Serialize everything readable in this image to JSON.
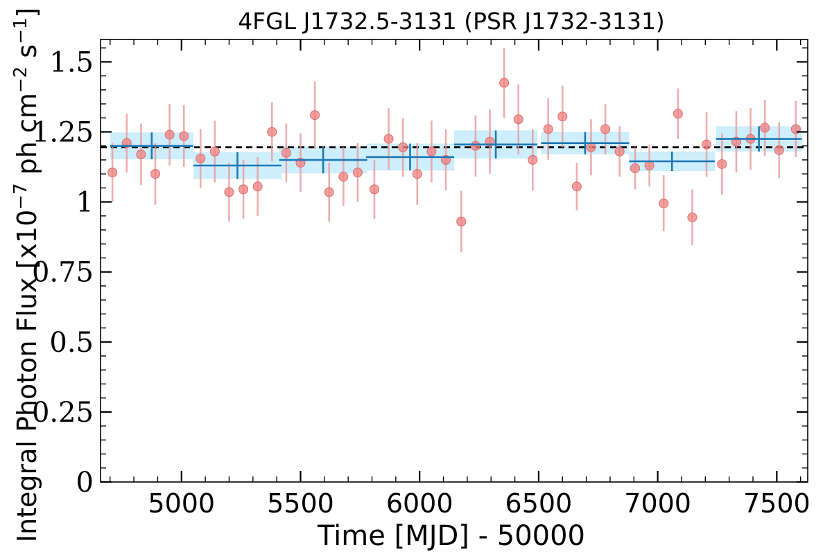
{
  "chart_data": {
    "type": "scatter",
    "title": "4FGL J1732.5-3131 (PSR J1732-3131)",
    "xlabel": "Time [MJD] - 50000",
    "ylabel": "Integral Photon Flux [x10^-7 ph cm^-2 s^-1]",
    "ylabel_parts": {
      "main": "Integral Photon Flux [x10",
      "exp1": "−7",
      "mid": " ph cm",
      "exp2": "−2",
      "s": " s",
      "exp3": "−1",
      "end": "]"
    },
    "xlim": [
      4660,
      7630
    ],
    "ylim": [
      0,
      1.58
    ],
    "xticks": [
      5000,
      5500,
      6000,
      6500,
      7000,
      7500
    ],
    "xtick_labels": [
      "5000",
      "5500",
      "6000",
      "6500",
      "7000",
      "7500"
    ],
    "yticks": [
      0,
      0.25,
      0.5,
      0.75,
      1,
      1.25,
      1.5
    ],
    "ytick_labels": [
      "0",
      "0.25",
      "0.5",
      "0.75",
      "1",
      "1.25",
      "1.5"
    ],
    "mean_flux": 1.195,
    "colors": {
      "points": "#f08080",
      "point_errors": "#e89a9a",
      "bins": "#1f77b4",
      "bin_band": "#cdeefc",
      "mean_line": "#000000"
    },
    "series": [
      {
        "kind": "short-bin points",
        "x": [
          4710,
          4770,
          4830,
          4890,
          4950,
          5010,
          5080,
          5140,
          5200,
          5260,
          5320,
          5380,
          5440,
          5500,
          5560,
          5620,
          5680,
          5740,
          5810,
          5870,
          5930,
          5990,
          6050,
          6110,
          6175,
          6235,
          6295,
          6355,
          6415,
          6475,
          6540,
          6600,
          6660,
          6720,
          6780,
          6840,
          6905,
          6965,
          7025,
          7085,
          7145,
          7205,
          7270,
          7330,
          7390,
          7450,
          7510,
          7580
        ],
        "y": [
          1.105,
          1.21,
          1.17,
          1.1,
          1.24,
          1.235,
          1.155,
          1.18,
          1.035,
          1.045,
          1.055,
          1.25,
          1.175,
          1.14,
          1.31,
          1.035,
          1.09,
          1.105,
          1.045,
          1.225,
          1.195,
          1.1,
          1.18,
          1.15,
          0.93,
          1.2,
          1.215,
          1.425,
          1.295,
          1.15,
          1.26,
          1.305,
          1.055,
          1.195,
          1.26,
          1.18,
          1.12,
          1.13,
          0.995,
          1.315,
          0.945,
          1.205,
          1.135,
          1.215,
          1.225,
          1.265,
          1.185,
          1.26
        ],
        "yerr": [
          0.105,
          0.105,
          0.11,
          0.11,
          0.11,
          0.11,
          0.105,
          0.11,
          0.105,
          0.105,
          0.105,
          0.105,
          0.105,
          0.105,
          0.12,
          0.105,
          0.105,
          0.105,
          0.105,
          0.11,
          0.105,
          0.11,
          0.11,
          0.11,
          0.11,
          0.11,
          0.115,
          0.125,
          0.125,
          0.11,
          0.11,
          0.11,
          0.085,
          0.1,
          0.09,
          0.09,
          0.075,
          0.075,
          0.1,
          0.09,
          0.1,
          0.115,
          0.11,
          0.11,
          0.11,
          0.1,
          0.1,
          0.1
        ]
      },
      {
        "kind": "long-bin fluxes",
        "x": [
          4875,
          5235,
          5595,
          5960,
          6320,
          6695,
          7060,
          7425
        ],
        "xerr": [
          175,
          185,
          185,
          185,
          175,
          185,
          180,
          180
        ],
        "y": [
          1.2,
          1.13,
          1.15,
          1.16,
          1.205,
          1.21,
          1.145,
          1.225
        ],
        "yerr": [
          0.048,
          0.048,
          0.048,
          0.048,
          0.05,
          0.04,
          0.035,
          0.045
        ]
      }
    ]
  }
}
